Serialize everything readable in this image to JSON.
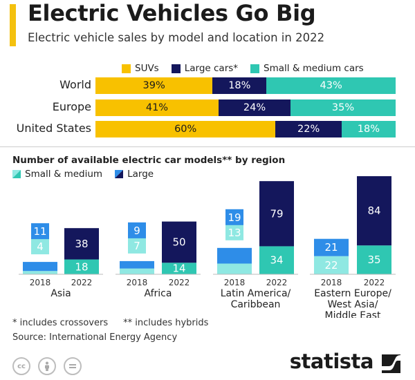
{
  "header": {
    "title": "Electric Vehicles Go Big",
    "subtitle": "Electric vehicle sales by model and location in 2022"
  },
  "colors": {
    "suv": "#f8c100",
    "large_car": "#14175c",
    "small_medium_car": "#2fc7b2",
    "small_medium_2018": "#8fe8e2",
    "small_medium_2022": "#2fc7b2",
    "large_2018": "#2e8de8",
    "large_2022": "#14175c",
    "accent": "#f4c10f"
  },
  "legend_sales": {
    "suv": "SUVs",
    "large": "Large cars*",
    "small_medium": "Small & medium cars"
  },
  "legend_models": {
    "small_medium": "Small & medium",
    "large": "Large"
  },
  "chart_data": [
    {
      "type": "bar",
      "orientation": "horizontal",
      "stacked": "100%",
      "title": "Electric vehicle sales by model and location in 2022",
      "categories": [
        "World",
        "Europe",
        "United States"
      ],
      "series": [
        {
          "name": "SUVs",
          "values": [
            39,
            41,
            60
          ],
          "labels": [
            "39%",
            "41%",
            "60%"
          ]
        },
        {
          "name": "Large cars*",
          "values": [
            18,
            24,
            22
          ],
          "labels": [
            "18%",
            "24%",
            "22%"
          ]
        },
        {
          "name": "Small & medium cars",
          "values": [
            43,
            35,
            18
          ],
          "labels": [
            "43%",
            "35%",
            "18%"
          ]
        }
      ],
      "legend_position": "top"
    },
    {
      "type": "bar",
      "stacked": true,
      "title": "Number of available electric car models** by region",
      "groups": [
        {
          "region": "Asia",
          "years": [
            "2018",
            "2022"
          ],
          "small_medium": [
            4,
            18
          ],
          "large": [
            11,
            38
          ]
        },
        {
          "region": "Africa",
          "years": [
            "2018",
            "2022"
          ],
          "small_medium": [
            7,
            14
          ],
          "large": [
            9,
            50
          ]
        },
        {
          "region": "Latin America/ Caribbean",
          "years": [
            "2018",
            "2022"
          ],
          "small_medium": [
            13,
            34
          ],
          "large": [
            19,
            79
          ]
        },
        {
          "region": "Eastern Europe/ West Asia/ Middle East",
          "years": [
            "2018",
            "2022"
          ],
          "small_medium": [
            22,
            35
          ],
          "large": [
            21,
            84
          ]
        }
      ],
      "series_names": [
        "Small & medium",
        "Large"
      ],
      "legend_position": "top-left",
      "grid": false
    }
  ],
  "footnotes": {
    "crossovers": "* includes crossovers",
    "hybrids": "** includes hybrids",
    "source": "Source: International Energy Agency"
  },
  "footer": {
    "brand": "statista",
    "cc_icons": [
      "cc-icon",
      "by-icon",
      "nd-icon"
    ]
  }
}
